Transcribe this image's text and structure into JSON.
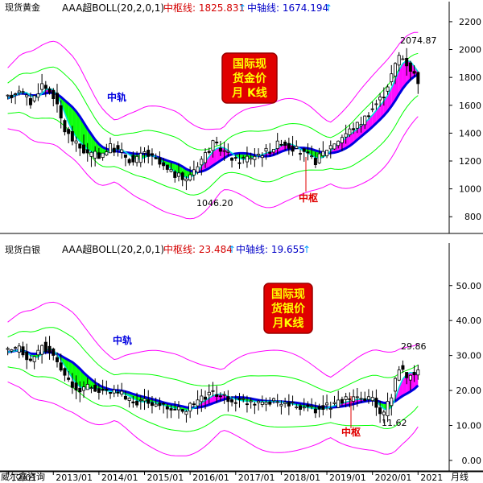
{
  "chart_data": [
    {
      "type": "candlestick",
      "panel_title": "现货黄金",
      "indicator_name": "AAA超BOLL(20,2,0,1)",
      "mid_label": "中枢线: 1825.831",
      "axis_label": "中轴线: 1674.194",
      "arrow": "↑",
      "annotation_box": [
        "国际现",
        "货金价",
        "月 K线"
      ],
      "annotations": {
        "mid_track": "中轨",
        "pivot": "中枢"
      },
      "data_labels": {
        "high": "2074.87",
        "low": "1046.20"
      },
      "y_ticks": [
        800,
        1000,
        1200,
        1400,
        1600,
        1800,
        2000,
        2200
      ],
      "y_tick_labels": [
        "800",
        "1000",
        "1200",
        "1400",
        "1600",
        "1800",
        "2000",
        "2200"
      ],
      "ylim": [
        680,
        2240
      ],
      "trend": [
        [
          2012.0,
          1650
        ],
        [
          2012.25,
          1720
        ],
        [
          2012.5,
          1620
        ],
        [
          2012.75,
          1750
        ],
        [
          2013.0,
          1670
        ],
        [
          2013.25,
          1420
        ],
        [
          2013.5,
          1320
        ],
        [
          2013.75,
          1250
        ],
        [
          2014.0,
          1240
        ],
        [
          2014.25,
          1300
        ],
        [
          2014.5,
          1260
        ],
        [
          2014.75,
          1190
        ],
        [
          2015.0,
          1260
        ],
        [
          2015.25,
          1200
        ],
        [
          2015.5,
          1130
        ],
        [
          2015.92,
          1060
        ],
        [
          2016.0,
          1110
        ],
        [
          2016.5,
          1320
        ],
        [
          2016.75,
          1270
        ],
        [
          2017.0,
          1200
        ],
        [
          2017.5,
          1250
        ],
        [
          2017.75,
          1280
        ],
        [
          2018.0,
          1340
        ],
        [
          2018.5,
          1250
        ],
        [
          2018.75,
          1200
        ],
        [
          2019.0,
          1290
        ],
        [
          2019.5,
          1420
        ],
        [
          2019.75,
          1480
        ],
        [
          2020.0,
          1580
        ],
        [
          2020.25,
          1680
        ],
        [
          2020.6,
          1970
        ],
        [
          2020.75,
          1900
        ],
        [
          2021.0,
          1780
        ]
      ]
    },
    {
      "type": "candlestick",
      "panel_title": "现货白银",
      "indicator_name": "AAA超BOLL(20,2,0,1)",
      "mid_label": "中枢线: 23.484",
      "axis_label": "中轴线: 19.655",
      "arrow": "↑",
      "annotation_box": [
        "国际现",
        "货银价",
        "月K线"
      ],
      "annotations": {
        "mid_track": "中轨",
        "pivot": "中枢"
      },
      "data_labels": {
        "high": "29.86",
        "low": "11.62"
      },
      "y_ticks": [
        0,
        10,
        20,
        30,
        40,
        50
      ],
      "y_tick_labels": [
        "0.00",
        "10.00",
        "20.00",
        "30.00",
        "40.00",
        "50.00"
      ],
      "ylim": [
        -3,
        58
      ],
      "trend": [
        [
          2012.0,
          31
        ],
        [
          2012.25,
          32
        ],
        [
          2012.5,
          28
        ],
        [
          2012.75,
          33
        ],
        [
          2013.0,
          30
        ],
        [
          2013.25,
          24
        ],
        [
          2013.5,
          20
        ],
        [
          2013.75,
          21
        ],
        [
          2014.0,
          20
        ],
        [
          2014.25,
          19.5
        ],
        [
          2014.5,
          19
        ],
        [
          2014.75,
          16.5
        ],
        [
          2015.0,
          17
        ],
        [
          2015.25,
          16
        ],
        [
          2015.5,
          15
        ],
        [
          2015.92,
          14
        ],
        [
          2016.0,
          15.5
        ],
        [
          2016.5,
          19.5
        ],
        [
          2016.75,
          18
        ],
        [
          2017.0,
          17
        ],
        [
          2017.5,
          16.8
        ],
        [
          2017.75,
          17
        ],
        [
          2018.0,
          16.5
        ],
        [
          2018.5,
          15
        ],
        [
          2018.75,
          14.5
        ],
        [
          2019.0,
          15.5
        ],
        [
          2019.5,
          17.5
        ],
        [
          2019.75,
          17.5
        ],
        [
          2020.0,
          17.5
        ],
        [
          2020.2,
          12
        ],
        [
          2020.4,
          18
        ],
        [
          2020.6,
          27
        ],
        [
          2020.75,
          24
        ],
        [
          2021.0,
          26
        ]
      ]
    }
  ],
  "footer": {
    "source": "威尔鑫咨询",
    "x_labels": [
      "12/01",
      "2013/01",
      "2014/01",
      "2015/01",
      "2016/01",
      "2017/01",
      "2018/01",
      "2019/01",
      "2020/01",
      "2021"
    ],
    "period": "月线"
  },
  "colors": {
    "magenta": "#ff00ff",
    "green": "#00ff00",
    "blue": "#0000e0",
    "cyan": "#00e0e0",
    "red": "#e00000",
    "mid_label_red": "#d40000",
    "axis_label_blue": "#0000c8",
    "arrow_cyan": "#00a0ff",
    "bull_fill": "#ffffff",
    "bear_fill": "#000000",
    "box_red": "#e00000",
    "box_text": "#ffff00"
  }
}
